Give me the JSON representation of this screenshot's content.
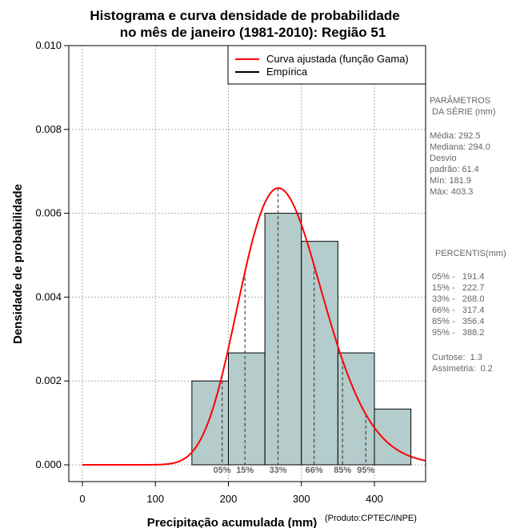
{
  "chart_data": {
    "type": "histogram",
    "title_line1": "Histograma e curva densidade de probabilidade",
    "title_line2": "no mês de janeiro (1981-2010): Região 51",
    "xlabel": "Precipitação acumulada (mm)",
    "ylabel": "Densidade de probabilidade",
    "source": "(Produto:CPTEC/INPE)",
    "xlim": [
      -20,
      470
    ],
    "ylim": [
      0,
      0.01
    ],
    "x_ticks": [
      0,
      100,
      200,
      300,
      400
    ],
    "x_tick_labels": [
      "0",
      "100",
      "200",
      "300",
      "400"
    ],
    "y_ticks": [
      0,
      0.002,
      0.004,
      0.006,
      0.008,
      0.01
    ],
    "y_tick_labels": [
      "0.000",
      "0.002",
      "0.004",
      "0.006",
      "0.008",
      "0.010"
    ],
    "grid": true,
    "bins": [
      {
        "start": 150,
        "end": 200,
        "density": 0.002
      },
      {
        "start": 200,
        "end": 250,
        "density": 0.00267
      },
      {
        "start": 250,
        "end": 300,
        "density": 0.006
      },
      {
        "start": 300,
        "end": 350,
        "density": 0.00533
      },
      {
        "start": 350,
        "end": 400,
        "density": 0.00267
      },
      {
        "start": 400,
        "end": 450,
        "density": 0.00133
      }
    ],
    "bar_color": "#b4cccc",
    "fitted_curve": {
      "name": "Curva ajustada (função Gama)",
      "color": "#ff0000",
      "shape": 23.0,
      "scale": 12.2,
      "peak_density": 0.0066
    },
    "empirical": {
      "name": "Empírica",
      "color": "#000000"
    },
    "legend_position": "top-right",
    "percentile_markers": [
      {
        "label": "05%",
        "value": 191.4
      },
      {
        "label": "15%",
        "value": 222.7
      },
      {
        "label": "33%",
        "value": 268.0
      },
      {
        "label": "66%",
        "value": 317.4
      },
      {
        "label": "85%",
        "value": 356.4
      },
      {
        "label": "95%",
        "value": 388.2
      }
    ]
  },
  "side_panel": {
    "params_header1": "PARÂMETROS",
    "params_header2": " DA SÉRIE (mm)",
    "stats": [
      "Média:  292.5",
      "Mediana:  294.0",
      "Desvio",
      "padrão:  61.4",
      "Mín:  181.9",
      "Máx:  403.3"
    ],
    "percentis_header": "PERCENTIS(mm)",
    "percentis": [
      "05% -   191.4",
      "15% -   222.7",
      "33% -   268.0",
      "66% -   317.4",
      "85% -   356.4",
      "95% -   388.2"
    ],
    "shape_stats": [
      "Curtose:  1.3",
      "Assimetria:  0.2"
    ]
  }
}
